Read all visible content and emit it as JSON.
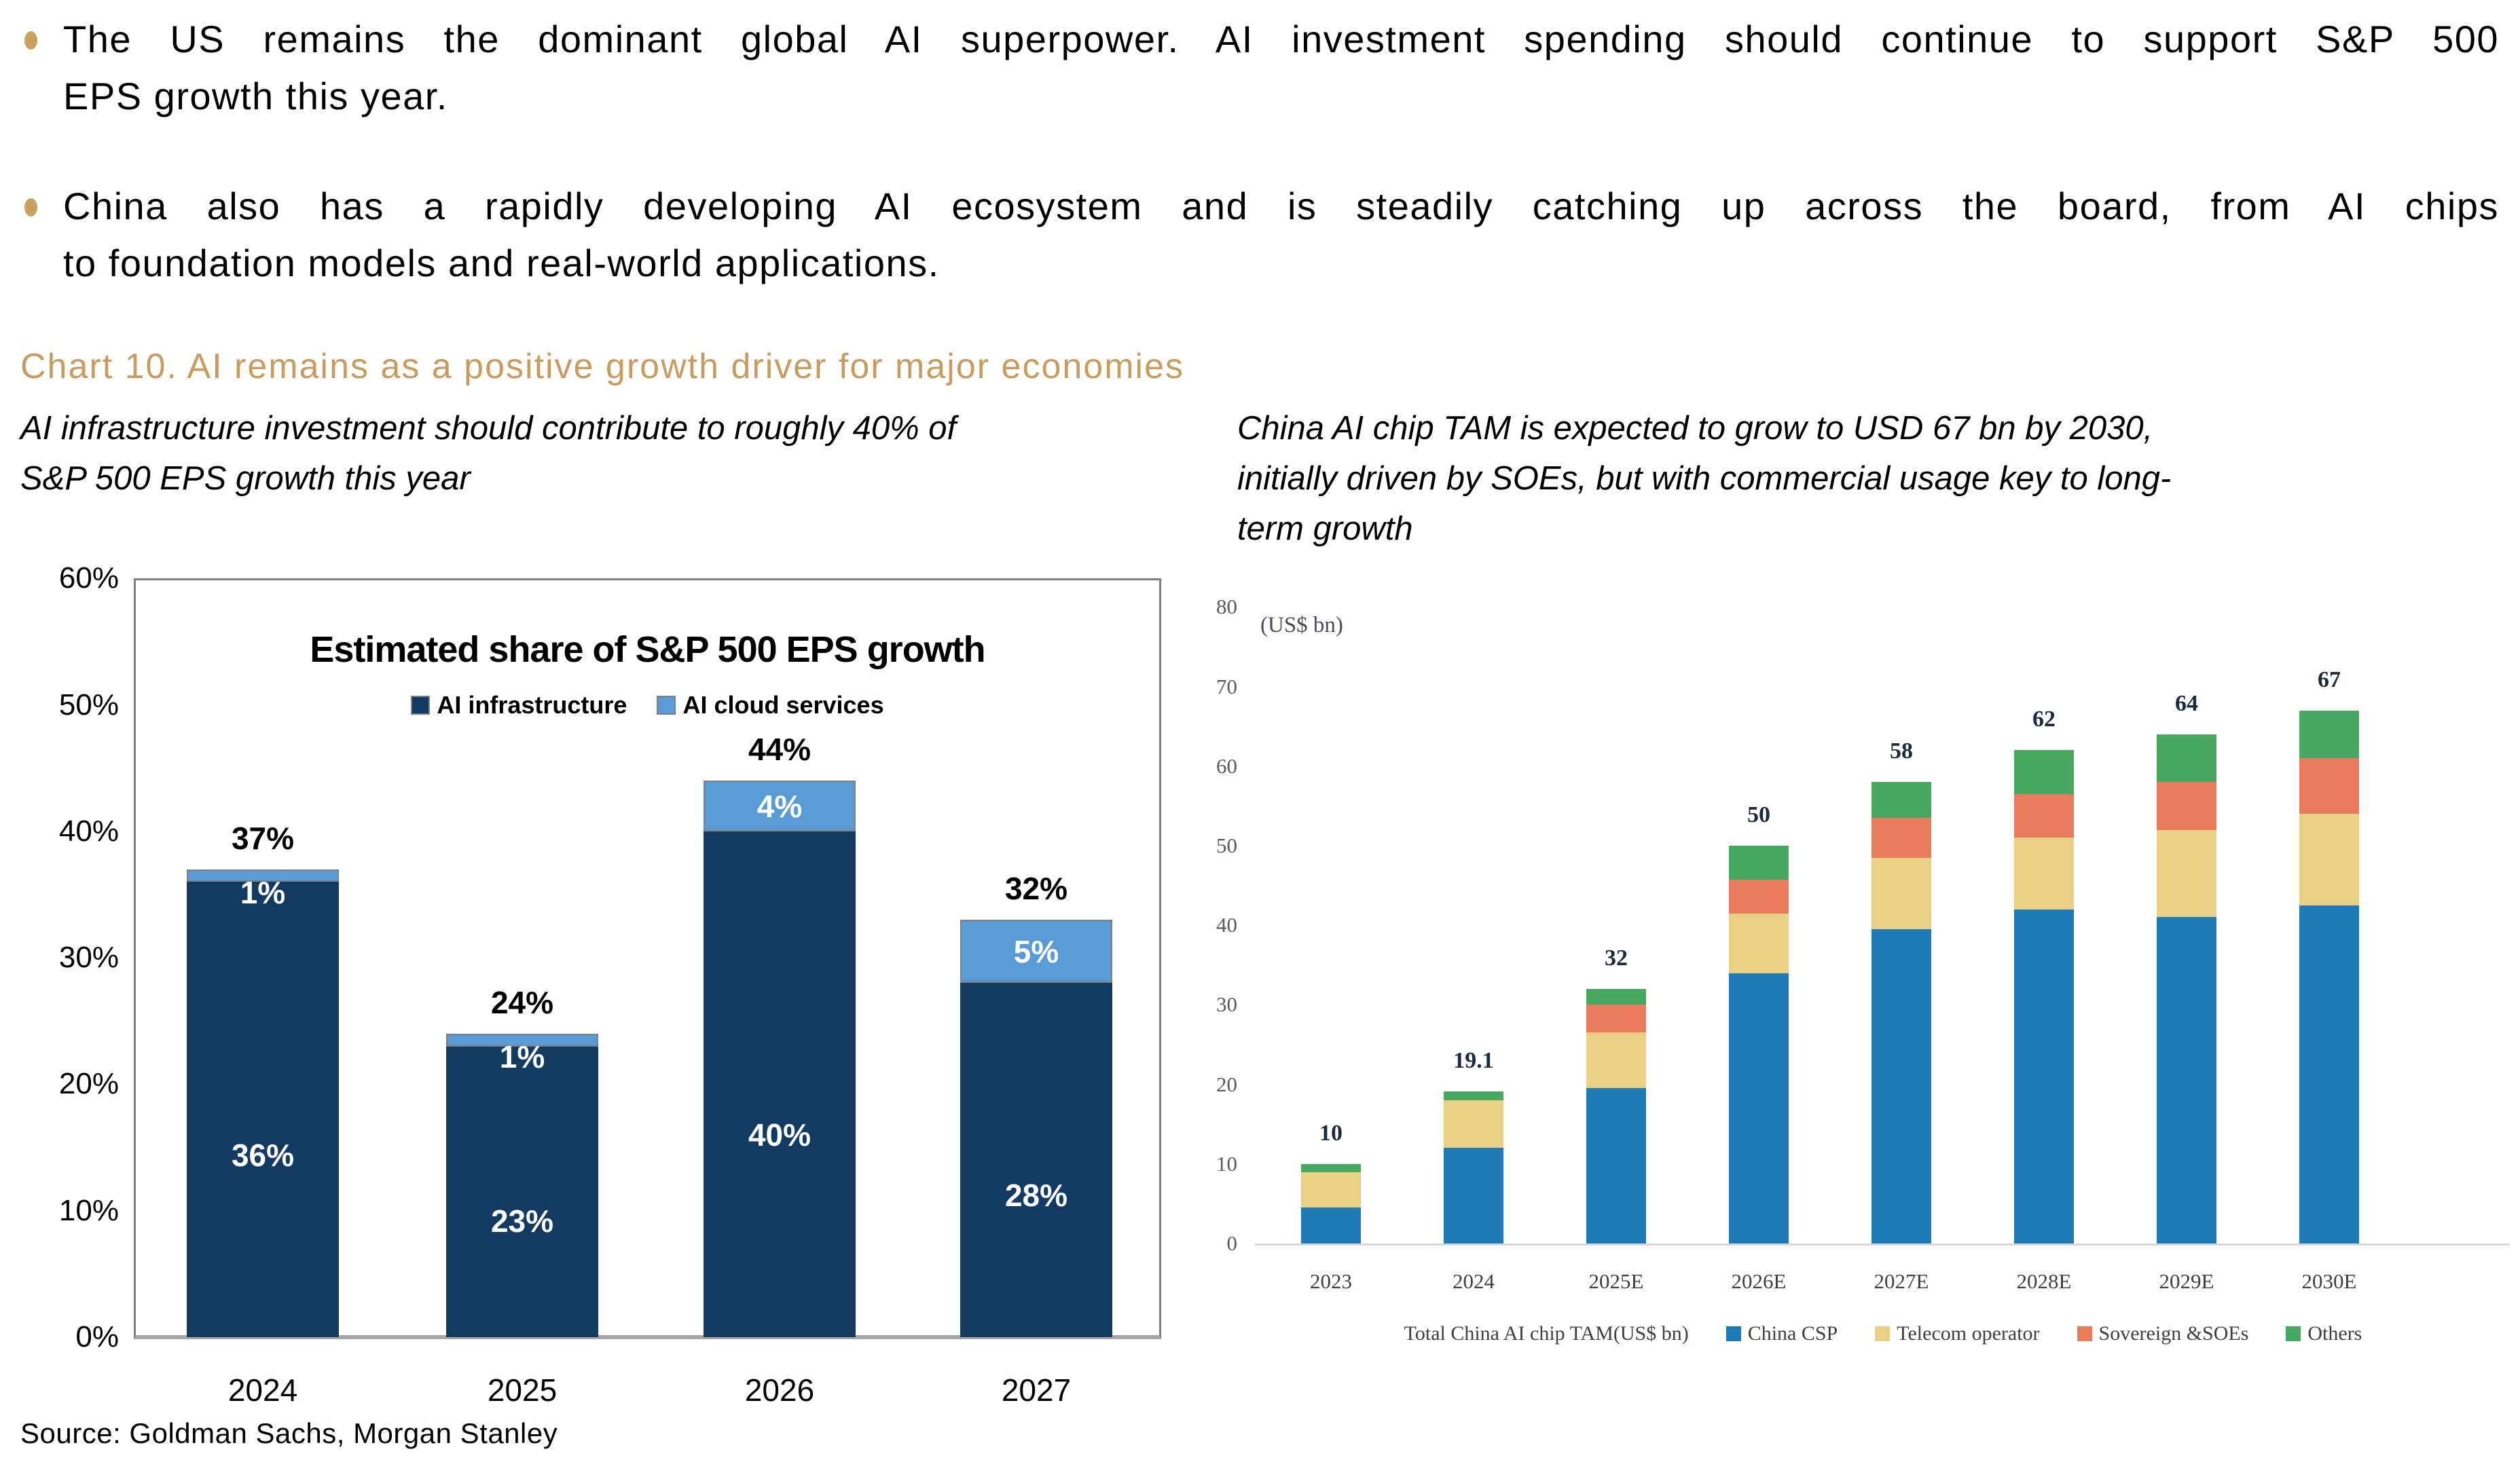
{
  "bullets": [
    {
      "lines": [
        "The US remains the dominant global AI superpower. AI investment spending should continue to support S&P 500",
        "EPS growth this year."
      ]
    },
    {
      "lines": [
        "China also has a rapidly developing AI ecosystem and is steadily catching up across the board, from AI chips",
        "to foundation models and real-world applications."
      ]
    }
  ],
  "heading": "Chart 10. AI remains as a positive growth driver for major economies",
  "subtitles": {
    "left_lines": [
      "AI infrastructure investment should contribute to roughly 40% of",
      "S&P 500 EPS growth this year"
    ],
    "right_lines": [
      "China AI chip TAM is expected to grow to USD 67 bn by 2030,",
      "initially driven by SOEs, but with commercial usage key to long-",
      "term growth"
    ]
  },
  "source": "Source: Goldman Sachs, Morgan Stanley",
  "colors": {
    "accent_gold": "#c89b5f",
    "navy": "#133a61",
    "light_blue": "#5b9bd5",
    "csp_blue": "#1f7ab8",
    "telecom_yellow": "#e9d084",
    "sovereign_orange": "#e77b5b",
    "others_green": "#48a85f",
    "axis_gray": "#7f7f7f",
    "baseline_gray": "#d9d9d9"
  },
  "chart_data": [
    {
      "type": "bar",
      "stacked": true,
      "title": "Estimated share of S&P 500 EPS growth",
      "categories": [
        "2024",
        "2025",
        "2026",
        "2027"
      ],
      "series": [
        {
          "name": "AI infrastructure",
          "color": "#133a61",
          "values": [
            36,
            23,
            40,
            28
          ],
          "value_labels": [
            "36%",
            "23%",
            "40%",
            "28%"
          ]
        },
        {
          "name": "AI cloud services",
          "color": "#5b9bd5",
          "values": [
            1,
            1,
            4,
            5
          ],
          "value_labels": [
            "1%",
            "1%",
            "4%",
            "5%"
          ]
        }
      ],
      "totals": [
        "37%",
        "24%",
        "44%",
        "32%"
      ],
      "ylim": [
        0,
        60
      ],
      "yticks": [
        0,
        10,
        20,
        30,
        40,
        50,
        60
      ],
      "ytick_labels": [
        "0%",
        "10%",
        "20%",
        "30%",
        "40%",
        "50%",
        "60%"
      ],
      "grid": false,
      "legend_position": "top-center"
    },
    {
      "type": "bar",
      "stacked": true,
      "unit_label": "(US$ bn)",
      "categories": [
        "2023",
        "2024",
        "2025E",
        "2026E",
        "2027E",
        "2028E",
        "2029E",
        "2030E"
      ],
      "series": [
        {
          "name": "China CSP",
          "color": "#1f7ab8",
          "values": [
            4.5,
            12,
            19.5,
            34,
            39.5,
            42,
            41,
            42.5
          ]
        },
        {
          "name": "Telecom operator",
          "color": "#e9d084",
          "values": [
            4.5,
            6,
            7,
            7.5,
            9,
            9,
            11,
            11.5
          ]
        },
        {
          "name": "Sovereign &SOEs",
          "color": "#e77b5b",
          "values": [
            0,
            0,
            3.5,
            4.25,
            5,
            5.5,
            6,
            7
          ]
        },
        {
          "name": "Others",
          "color": "#48a85f",
          "values": [
            1,
            1.1,
            2,
            4.25,
            4.5,
            5.5,
            6,
            6
          ]
        }
      ],
      "totals": [
        "10",
        "19.1",
        "32",
        "50",
        "58",
        "62",
        "64",
        "67"
      ],
      "legend_title": "Total China AI chip TAM(US$ bn)",
      "ylim": [
        0,
        80
      ],
      "yticks": [
        0,
        10,
        20,
        30,
        40,
        50,
        60,
        70,
        80
      ],
      "grid": false,
      "legend_position": "bottom-center"
    }
  ]
}
